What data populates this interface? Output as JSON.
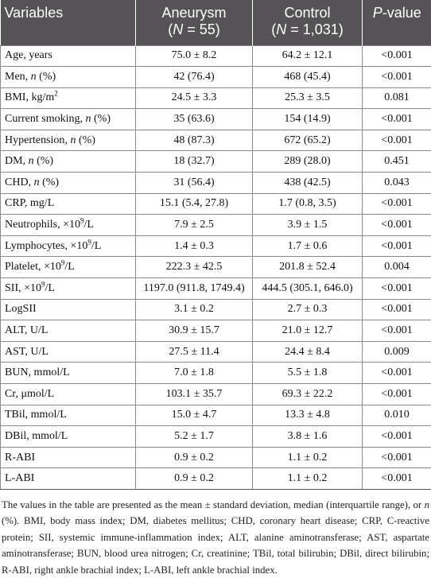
{
  "header": {
    "variables": "Variables",
    "aneurysm": "Aneurysm",
    "aneurysm_n_prefix": "(",
    "aneurysm_n_label": "N",
    "aneurysm_n_value": " = 55)",
    "control": "Control",
    "control_n_prefix": "(",
    "control_n_label": "N",
    "control_n_value": " = 1,031)",
    "p_label": "P",
    "p_suffix": "-value"
  },
  "rows": [
    {
      "name": "Age, years",
      "aneurysm": "75.0 ± 8.2",
      "control": "64.2 ± 12.1",
      "p": "<0.001"
    },
    {
      "name": "Men, ",
      "name_italic": "n",
      "name_tail": " (%)",
      "aneurysm": "42 (76.4)",
      "control": "468 (45.4)",
      "p": "<0.001"
    },
    {
      "name": "BMI, kg/m",
      "name_sup": "2",
      "aneurysm": "24.5 ± 3.3",
      "control": "25.3 ± 3.5",
      "p": "0.081"
    },
    {
      "name": "Current smoking, ",
      "name_italic": "n",
      "name_tail": " (%)",
      "aneurysm": "35 (63.6)",
      "control": "154 (14.9)",
      "p": "<0.001"
    },
    {
      "name": "Hypertension, ",
      "name_italic": "n",
      "name_tail": " (%)",
      "aneurysm": "48 (87.3)",
      "control": "672 (65.2)",
      "p": "<0.001"
    },
    {
      "name": "DM, ",
      "name_italic": "n",
      "name_tail": " (%)",
      "aneurysm": "18 (32.7)",
      "control": "289 (28.0)",
      "p": "0.451"
    },
    {
      "name": "CHD, ",
      "name_italic": "n",
      "name_tail": " (%)",
      "aneurysm": "31 (56.4)",
      "control": "438 (42.5)",
      "p": "0.043"
    },
    {
      "name": "CRP, mg/L",
      "aneurysm": "15.1 (5.4, 27.8)",
      "control": "1.7 (0.8, 3.5)",
      "p": "<0.001"
    },
    {
      "name": "Neutrophils, ×10",
      "name_sup": "9",
      "name_tail": "/L",
      "aneurysm": "7.9 ± 2.5",
      "control": "3.9 ± 1.5",
      "p": "<0.001"
    },
    {
      "name": "Lymphocytes, ×10",
      "name_sup": "9",
      "name_tail": "/L",
      "aneurysm": "1.4 ± 0.3",
      "control": "1.7 ± 0.6",
      "p": "<0.001"
    },
    {
      "name": "Platelet, ×10",
      "name_sup": "9",
      "name_tail": "/L",
      "aneurysm": "222.3 ± 42.5",
      "control": "201.8 ± 52.4",
      "p": "0.004"
    },
    {
      "name": "SII, ×10",
      "name_sup": "9",
      "name_tail": "/L",
      "aneurysm": "1197.0 (911.8, 1749.4)",
      "control": "444.5 (305.1, 646.0)",
      "p": "<0.001"
    },
    {
      "name": "LogSII",
      "aneurysm": "3.1 ± 0.2",
      "control": "2.7 ± 0.3",
      "p": "<0.001"
    },
    {
      "name": "ALT, U/L",
      "aneurysm": "30.9 ± 15.7",
      "control": "21.0 ± 12.7",
      "p": "<0.001"
    },
    {
      "name": "AST, U/L",
      "aneurysm": "27.5 ± 11.4",
      "control": "24.4 ± 8.4",
      "p": "0.009"
    },
    {
      "name": "BUN, mmol/L",
      "aneurysm": "7.0 ± 1.8",
      "control": "5.5 ± 1.8",
      "p": "<0.001"
    },
    {
      "name": "Cr, μmol/L",
      "aneurysm": "103.1 ± 35.7",
      "control": "69.3 ± 22.2",
      "p": "<0.001"
    },
    {
      "name": "TBil, mmol/L",
      "aneurysm": "15.0 ± 4.7",
      "control": "13.3 ± 4.8",
      "p": "0.010"
    },
    {
      "name": "DBil, mmol/L",
      "aneurysm": "5.2 ± 1.7",
      "control": "3.8 ± 1.6",
      "p": "<0.001"
    },
    {
      "name": "R-ABI",
      "aneurysm": "0.9 ± 0.2",
      "control": "1.1 ± 0.2",
      "p": "<0.001"
    },
    {
      "name": "L-ABI",
      "aneurysm": "0.9 ± 0.2",
      "control": "1.1 ± 0.2",
      "p": "<0.001"
    }
  ],
  "footnote": {
    "part1": "The values in the table are presented as the mean ± standard deviation, median (interquartile range), or ",
    "italic_n": "n",
    "part2": " (%). BMI, body mass index; DM, diabetes mellitus; CHD, coronary heart disease; CRP, C-reactive protein; SII, systemic immune-inflammation index; ALT, alanine aminotransferase; AST, aspartate aminotransferase; BUN, blood urea nitrogen; Cr, creatinine; TBil, total bilirubin; DBil, direct bilirubin; R-ABI, right ankle brachial index; L-ABI, left ankle brachial index."
  },
  "colors": {
    "header_bg": "#555356",
    "header_text": "#ffffff",
    "border": "#8a8a8a"
  }
}
